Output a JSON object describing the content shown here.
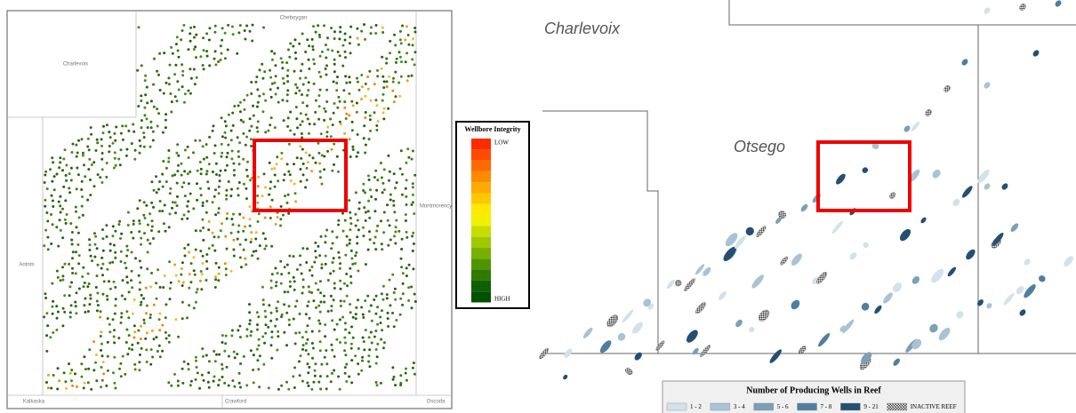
{
  "left_map": {
    "county_labels": [
      "Cheboygan",
      "Charlevoix",
      "Antrim",
      "Montmorency",
      "Kalkaska",
      "Crawford",
      "Oscoda"
    ],
    "legend": {
      "title": "Wellbore Integrity",
      "low": "LOW",
      "high": "HIGH"
    }
  },
  "right_map": {
    "county_labels": [
      "Charlevoix",
      "Otsego"
    ],
    "legend": {
      "title": "Number of Producing Wells in Reef",
      "items": [
        {
          "label": "1 - 2",
          "color": "#d3e2ea"
        },
        {
          "label": "3 - 4",
          "color": "#a9c3d4"
        },
        {
          "label": "5 - 6",
          "color": "#7d9fb8"
        },
        {
          "label": "7 - 8",
          "color": "#507ea0"
        },
        {
          "label": "9 - 21",
          "color": "#254f72"
        },
        {
          "label": "INACTIVE REEF",
          "color": "hatch"
        }
      ]
    }
  }
}
